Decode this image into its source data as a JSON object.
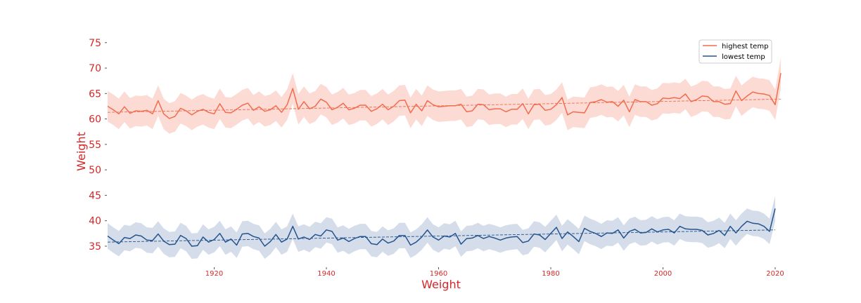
{
  "chart_data": {
    "type": "line",
    "xlabel": "Weight",
    "ylabel": "Weight",
    "xlim": [
      1901,
      2020
    ],
    "ylim": [
      31,
      78
    ],
    "xticks": [
      1920,
      1940,
      1960,
      1980,
      2000,
      2020
    ],
    "yticks": [
      35,
      40,
      45,
      50,
      55,
      60,
      65,
      70,
      75
    ],
    "grid": false,
    "legend_position": "top-right",
    "series": [
      {
        "name": "highest temp",
        "color": "#f26c4f",
        "band_color": "#fcd5cc",
        "band_halfwidth": 3.0,
        "trend": [
          61.3,
          63.9
        ],
        "x_start": 1901,
        "values": [
          62.5,
          61.8,
          61.0,
          62.4,
          61.1,
          61.6,
          61.5,
          61.7,
          61.0,
          63.6,
          61.0,
          60.1,
          60.5,
          62.1,
          61.6,
          60.8,
          61.5,
          61.9,
          61.3,
          61.0,
          63.0,
          61.3,
          61.2,
          61.9,
          62.7,
          63.1,
          61.7,
          62.4,
          61.5,
          61.8,
          62.6,
          61.3,
          62.8,
          66.0,
          61.9,
          63.4,
          62.0,
          62.5,
          63.9,
          63.3,
          61.8,
          62.3,
          63.1,
          61.8,
          62.1,
          62.7,
          62.7,
          61.5,
          62.0,
          62.9,
          61.8,
          62.5,
          63.6,
          63.7,
          61.2,
          62.9,
          61.6,
          63.6,
          62.8,
          62.4,
          62.5,
          62.6,
          62.6,
          62.9,
          61.4,
          61.6,
          62.9,
          62.8,
          61.8,
          62.0,
          62.0,
          61.4,
          61.9,
          61.9,
          63.0,
          61.0,
          62.8,
          62.9,
          61.7,
          61.9,
          62.8,
          64.2,
          60.8,
          61.4,
          61.3,
          61.2,
          63.2,
          63.4,
          63.8,
          63.3,
          63.4,
          62.5,
          63.7,
          61.4,
          63.8,
          63.4,
          63.4,
          62.7,
          63.0,
          64.1,
          64.0,
          64.2,
          64.0,
          64.9,
          63.4,
          63.8,
          64.5,
          64.4,
          63.4,
          63.4,
          62.9,
          63.0,
          65.5,
          63.6,
          64.5,
          65.3,
          65.0,
          64.9,
          64.6,
          62.8,
          69.0
        ]
      },
      {
        "name": "lowest temp",
        "color": "#24548f",
        "band_color": "#cdd7e5",
        "band_halfwidth": 2.5,
        "trend": [
          35.8,
          38.2
        ],
        "x_start": 1901,
        "values": [
          37.0,
          36.2,
          35.5,
          36.7,
          36.5,
          37.2,
          37.0,
          36.2,
          36.1,
          37.4,
          36.0,
          35.3,
          35.4,
          37.1,
          36.5,
          35.0,
          35.1,
          36.8,
          35.8,
          36.3,
          37.5,
          35.8,
          36.4,
          35.2,
          37.4,
          37.5,
          36.9,
          36.6,
          35.0,
          35.9,
          37.3,
          35.8,
          36.4,
          38.9,
          36.4,
          36.8,
          36.3,
          37.3,
          37.0,
          38.2,
          37.9,
          36.2,
          36.6,
          35.9,
          36.5,
          36.9,
          36.9,
          35.5,
          35.3,
          36.4,
          35.6,
          36.0,
          37.1,
          37.1,
          35.2,
          35.8,
          36.8,
          38.2,
          36.8,
          36.2,
          37.0,
          36.8,
          37.5,
          35.4,
          36.5,
          36.6,
          37.1,
          36.5,
          36.9,
          36.6,
          36.2,
          36.6,
          36.8,
          36.9,
          35.7,
          36.0,
          37.4,
          37.2,
          36.3,
          37.5,
          38.7,
          36.5,
          37.8,
          36.9,
          35.9,
          38.5,
          37.9,
          37.5,
          36.9,
          37.6,
          37.5,
          38.2,
          36.6,
          37.9,
          38.3,
          37.6,
          37.7,
          38.4,
          37.8,
          38.2,
          38.3,
          37.6,
          38.9,
          38.4,
          38.3,
          38.3,
          38.1,
          37.2,
          37.5,
          38.1,
          37.1,
          38.9,
          37.6,
          38.9,
          39.9,
          39.5,
          39.4,
          38.9,
          37.9,
          42.4
        ]
      }
    ]
  }
}
